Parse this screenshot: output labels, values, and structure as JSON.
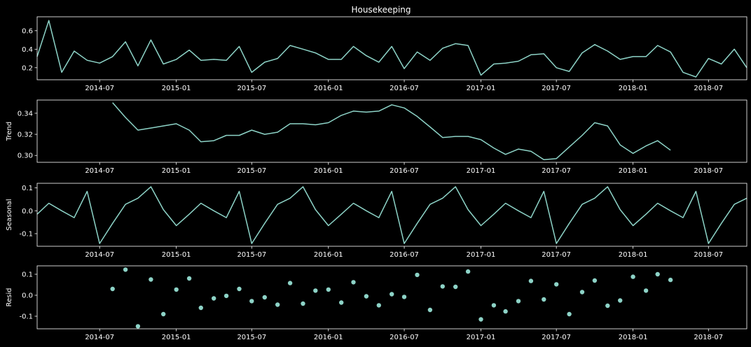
{
  "colors": {
    "background": "#000000",
    "series": "#8dd3c7",
    "axes": "#ffffff"
  },
  "chart_data": {
    "type": "line",
    "title": "Housekeeping",
    "xlim": [
      "2014-02-01",
      "2018-10-01"
    ],
    "x_ticks": [
      "2014-07",
      "2015-01",
      "2015-07",
      "2016-01",
      "2016-07",
      "2017-01",
      "2017-07",
      "2018-01",
      "2018-07"
    ],
    "panels": [
      {
        "name": "observed",
        "type": "line",
        "ylabel": "",
        "ylim": [
          0.07,
          0.75
        ],
        "y_ticks": [
          0.2,
          0.4,
          0.6
        ],
        "x": [
          "2014-02-01",
          "2014-03-01",
          "2014-04-01",
          "2014-05-01",
          "2014-06-01",
          "2014-07-01",
          "2014-08-01",
          "2014-09-01",
          "2014-10-01",
          "2014-11-01",
          "2014-12-01",
          "2015-01-01",
          "2015-02-01",
          "2015-03-01",
          "2015-04-01",
          "2015-05-01",
          "2015-06-01",
          "2015-07-01",
          "2015-08-01",
          "2015-09-01",
          "2015-10-01",
          "2015-11-01",
          "2015-12-01",
          "2016-01-01",
          "2016-02-01",
          "2016-03-01",
          "2016-04-01",
          "2016-05-01",
          "2016-06-01",
          "2016-07-01",
          "2016-08-01",
          "2016-09-01",
          "2016-10-01",
          "2016-11-01",
          "2016-12-01",
          "2017-01-01",
          "2017-02-01",
          "2017-03-01",
          "2017-04-01",
          "2017-05-01",
          "2017-06-01",
          "2017-07-01",
          "2017-08-01",
          "2017-09-01",
          "2017-10-01",
          "2017-11-01",
          "2017-12-01",
          "2018-01-01",
          "2018-02-01",
          "2018-03-01",
          "2018-04-01",
          "2018-05-01",
          "2018-06-01",
          "2018-07-01",
          "2018-08-01",
          "2018-09-01",
          "2018-10-01"
        ],
        "values": [
          0.32,
          0.71,
          0.15,
          0.38,
          0.28,
          0.25,
          0.32,
          0.48,
          0.22,
          0.5,
          0.24,
          0.29,
          0.39,
          0.28,
          0.29,
          0.28,
          0.43,
          0.15,
          0.26,
          0.3,
          0.44,
          0.4,
          0.36,
          0.29,
          0.29,
          0.43,
          0.33,
          0.26,
          0.43,
          0.19,
          0.37,
          0.28,
          0.41,
          0.46,
          0.44,
          0.12,
          0.24,
          0.25,
          0.27,
          0.34,
          0.35,
          0.2,
          0.16,
          0.36,
          0.45,
          0.38,
          0.29,
          0.32,
          0.32,
          0.44,
          0.37,
          0.15,
          0.1,
          0.3,
          0.24,
          0.4,
          0.2
        ]
      },
      {
        "name": "trend",
        "type": "line",
        "ylabel": "Trend",
        "ylim": [
          0.2935,
          0.3525
        ],
        "y_ticks": [
          0.3,
          0.32,
          0.34
        ],
        "x": [
          "2014-08-01",
          "2014-09-01",
          "2014-10-01",
          "2014-11-01",
          "2014-12-01",
          "2015-01-01",
          "2015-02-01",
          "2015-03-01",
          "2015-04-01",
          "2015-05-01",
          "2015-06-01",
          "2015-07-01",
          "2015-08-01",
          "2015-09-01",
          "2015-10-01",
          "2015-11-01",
          "2015-12-01",
          "2016-01-01",
          "2016-02-01",
          "2016-03-01",
          "2016-04-01",
          "2016-05-01",
          "2016-06-01",
          "2016-07-01",
          "2016-08-01",
          "2016-09-01",
          "2016-10-01",
          "2016-11-01",
          "2016-12-01",
          "2017-01-01",
          "2017-02-01",
          "2017-03-01",
          "2017-04-01",
          "2017-05-01",
          "2017-06-01",
          "2017-07-01",
          "2017-08-01",
          "2017-09-01",
          "2017-10-01",
          "2017-11-01",
          "2017-12-01",
          "2018-01-01",
          "2018-02-01",
          "2018-03-01",
          "2018-04-01"
        ],
        "values": [
          0.35,
          0.336,
          0.324,
          0.326,
          0.328,
          0.33,
          0.324,
          0.313,
          0.314,
          0.319,
          0.319,
          0.324,
          0.32,
          0.322,
          0.33,
          0.33,
          0.329,
          0.331,
          0.338,
          0.342,
          0.341,
          0.342,
          0.348,
          0.345,
          0.337,
          0.327,
          0.317,
          0.318,
          0.318,
          0.315,
          0.307,
          0.301,
          0.306,
          0.304,
          0.296,
          0.297,
          0.308,
          0.319,
          0.331,
          0.328,
          0.31,
          0.302,
          0.309,
          0.314,
          0.305
        ]
      },
      {
        "name": "seasonal",
        "type": "line",
        "ylabel": "Seasonal",
        "ylim": [
          -0.155,
          0.12
        ],
        "y_ticks": [
          -0.1,
          0.0,
          0.1
        ],
        "x": [
          "2014-02-01",
          "2014-03-01",
          "2014-04-01",
          "2014-05-01",
          "2014-06-01",
          "2014-07-01",
          "2014-08-01",
          "2014-09-01",
          "2014-10-01",
          "2014-11-01",
          "2014-12-01",
          "2015-01-01",
          "2015-02-01",
          "2015-03-01",
          "2015-04-01",
          "2015-05-01",
          "2015-06-01",
          "2015-07-01",
          "2015-08-01",
          "2015-09-01",
          "2015-10-01",
          "2015-11-01",
          "2015-12-01",
          "2016-01-01",
          "2016-02-01",
          "2016-03-01",
          "2016-04-01",
          "2016-05-01",
          "2016-06-01",
          "2016-07-01",
          "2016-08-01",
          "2016-09-01",
          "2016-10-01",
          "2016-11-01",
          "2016-12-01",
          "2017-01-01",
          "2017-02-01",
          "2017-03-01",
          "2017-04-01",
          "2017-05-01",
          "2017-06-01",
          "2017-07-01",
          "2017-08-01",
          "2017-09-01",
          "2017-10-01",
          "2017-11-01",
          "2017-12-01",
          "2018-01-01",
          "2018-02-01",
          "2018-03-01",
          "2018-04-01",
          "2018-05-01",
          "2018-06-01",
          "2018-07-01",
          "2018-08-01",
          "2018-09-01",
          "2018-10-01"
        ],
        "values": [
          -0.015,
          0.033,
          0.0,
          -0.03,
          0.085,
          -0.143,
          -0.055,
          0.028,
          0.055,
          0.105,
          0.005,
          -0.065,
          -0.015,
          0.033,
          0.0,
          -0.03,
          0.085,
          -0.143,
          -0.055,
          0.028,
          0.055,
          0.105,
          0.005,
          -0.065,
          -0.015,
          0.033,
          0.0,
          -0.03,
          0.085,
          -0.143,
          -0.055,
          0.028,
          0.055,
          0.105,
          0.005,
          -0.065,
          -0.015,
          0.033,
          0.0,
          -0.03,
          0.085,
          -0.143,
          -0.055,
          0.028,
          0.055,
          0.105,
          0.005,
          -0.065,
          -0.015,
          0.033,
          0.0,
          -0.03,
          0.085,
          -0.143,
          -0.055,
          0.028,
          0.055
        ]
      },
      {
        "name": "resid",
        "type": "scatter",
        "ylabel": "Resid",
        "ylim": [
          -0.16,
          0.14
        ],
        "y_ticks": [
          -0.1,
          0.0,
          0.1
        ],
        "x": [
          "2014-08-01",
          "2014-09-01",
          "2014-10-01",
          "2014-11-01",
          "2014-12-01",
          "2015-01-01",
          "2015-02-01",
          "2015-03-01",
          "2015-04-01",
          "2015-05-01",
          "2015-06-01",
          "2015-07-01",
          "2015-08-01",
          "2015-09-01",
          "2015-10-01",
          "2015-11-01",
          "2015-12-01",
          "2016-01-01",
          "2016-02-01",
          "2016-03-01",
          "2016-04-01",
          "2016-05-01",
          "2016-06-01",
          "2016-07-01",
          "2016-08-01",
          "2016-09-01",
          "2016-10-01",
          "2016-11-01",
          "2016-12-01",
          "2017-01-01",
          "2017-02-01",
          "2017-03-01",
          "2017-04-01",
          "2017-05-01",
          "2017-06-01",
          "2017-07-01",
          "2017-08-01",
          "2017-09-01",
          "2017-10-01",
          "2017-11-01",
          "2017-12-01",
          "2018-01-01",
          "2018-02-01",
          "2018-03-01",
          "2018-04-01"
        ],
        "values": [
          0.03,
          0.122,
          -0.148,
          0.075,
          -0.09,
          0.027,
          0.08,
          -0.06,
          -0.015,
          -0.003,
          0.03,
          -0.028,
          -0.01,
          -0.045,
          0.058,
          -0.04,
          0.022,
          0.027,
          -0.035,
          0.062,
          -0.005,
          -0.048,
          0.005,
          -0.008,
          0.097,
          -0.07,
          0.042,
          0.04,
          0.113,
          -0.115,
          -0.048,
          -0.077,
          -0.028,
          0.068,
          -0.02,
          0.052,
          -0.09,
          0.015,
          0.07,
          -0.05,
          -0.025,
          0.088,
          0.022,
          0.1,
          0.073
        ]
      }
    ]
  }
}
